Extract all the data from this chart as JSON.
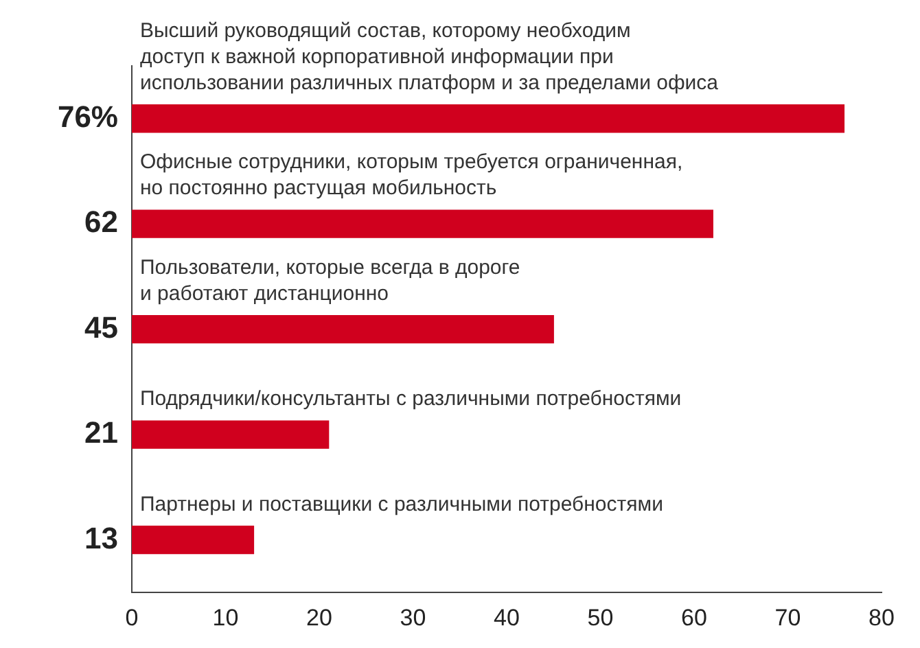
{
  "chart_data": {
    "type": "bar",
    "orientation": "horizontal",
    "categories": [
      "Высший руководящий состав, которому необходим\nдоступ к важной корпоративной информации при\nиспользовании различных платформ и за пределами офиса",
      "Офисные сотрудники, которым требуется ограниченная,\nно постоянно растущая мобильность",
      "Пользователи, которые всегда в дороге\nи работают дистанционно",
      "Подрядчики/консультанты с различными потребностями",
      "Партнеры и поставщики с различными потребностями"
    ],
    "values": [
      76,
      62,
      45,
      21,
      13
    ],
    "value_labels": [
      "76%",
      "62",
      "45",
      "21",
      "13"
    ],
    "color": "#d0001e",
    "xlim": [
      0,
      80
    ],
    "xticks": [
      0,
      10,
      20,
      30,
      40,
      50,
      60,
      70,
      80
    ],
    "grid": false,
    "legend": false
  }
}
